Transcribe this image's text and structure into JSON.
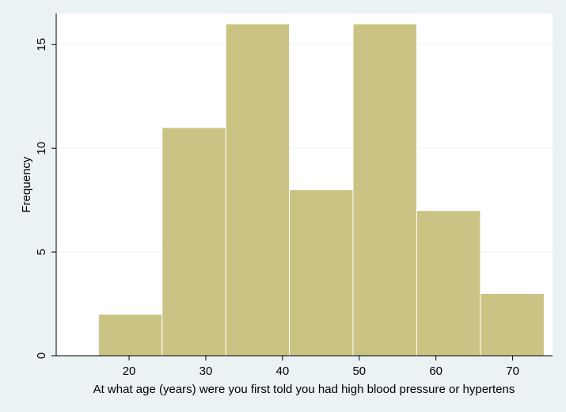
{
  "chart_data": {
    "type": "bar",
    "subtype": "histogram",
    "title": "",
    "xlabel": "At what age (years) were you first told you had high blood pressure or hypertens",
    "ylabel": "Frequency",
    "bins": [
      {
        "x0": 16.0,
        "x1": 24.3,
        "count": 2
      },
      {
        "x0": 24.3,
        "x1": 32.6,
        "count": 11
      },
      {
        "x0": 32.6,
        "x1": 40.9,
        "count": 16
      },
      {
        "x0": 40.9,
        "x1": 49.2,
        "count": 8
      },
      {
        "x0": 49.2,
        "x1": 57.5,
        "count": 16
      },
      {
        "x0": 57.5,
        "x1": 65.8,
        "count": 7
      },
      {
        "x0": 65.8,
        "x1": 74.1,
        "count": 3
      }
    ],
    "xticks": [
      20,
      30,
      40,
      50,
      60,
      70
    ],
    "yticks": [
      0,
      5,
      10,
      15
    ],
    "xlim": [
      10.5,
      75.2
    ],
    "ylim": [
      0,
      16.5
    ],
    "grid": true,
    "colors": {
      "background": "#eaf2f3",
      "plot_area": "#ffffff",
      "bar_fill": "#cbc384",
      "bar_stroke": "#ffffff",
      "gridline": "#eaf2f3",
      "axis": "#000000"
    }
  }
}
